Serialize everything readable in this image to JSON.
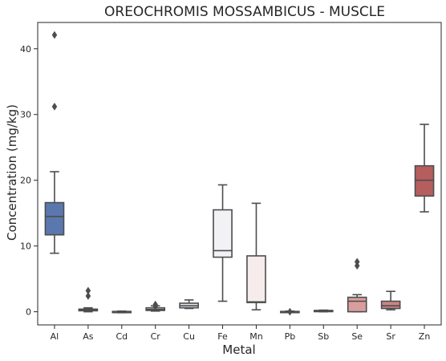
{
  "chart_data": {
    "type": "box",
    "title": "OREOCHROMIS MOSSAMBICUS - MUSCLE",
    "xlabel": "Metal",
    "ylabel": "Concentration (mg/kg)",
    "ylim": [
      -2,
      44
    ],
    "yticks": [
      0,
      10,
      20,
      30,
      40
    ],
    "grid": false,
    "categories": [
      "Al",
      "As",
      "Cd",
      "Cr",
      "Cu",
      "Fe",
      "Mn",
      "Pb",
      "Sb",
      "Se",
      "Sr",
      "Zn"
    ],
    "boxes": [
      {
        "category": "Al",
        "whisker_low": 8.9,
        "q1": 11.7,
        "median": 14.5,
        "q3": 16.6,
        "whisker_high": 21.3,
        "outliers": [
          31.2,
          42.1
        ],
        "color": "#5a78ad"
      },
      {
        "category": "As",
        "whisker_low": 0.0,
        "q1": 0.15,
        "median": 0.3,
        "q3": 0.4,
        "whisker_high": 0.6,
        "outliers": [
          2.4,
          3.2
        ],
        "color": "#8299c2"
      },
      {
        "category": "Cd",
        "whisker_low": -0.15,
        "q1": -0.05,
        "median": 0.0,
        "q3": 0.05,
        "whisker_high": 0.1,
        "outliers": [],
        "color": "#a6b5d4"
      },
      {
        "category": "Cr",
        "whisker_low": 0.1,
        "q1": 0.2,
        "median": 0.35,
        "q3": 0.6,
        "whisker_high": 0.9,
        "outliers": [
          0.8,
          1.1
        ],
        "color": "#c8d1e3"
      },
      {
        "category": "Cu",
        "whisker_low": 0.5,
        "q1": 0.6,
        "median": 0.9,
        "q3": 1.3,
        "whisker_high": 1.8,
        "outliers": [],
        "color": "#e3e7ef"
      },
      {
        "category": "Fe",
        "whisker_low": 1.6,
        "q1": 8.3,
        "median": 9.3,
        "q3": 15.5,
        "whisker_high": 19.3,
        "outliers": [],
        "color": "#f2f2f4"
      },
      {
        "category": "Mn",
        "whisker_low": 0.3,
        "q1": 1.4,
        "median": 1.5,
        "q3": 8.5,
        "whisker_high": 16.5,
        "outliers": [],
        "color": "#f6ecec"
      },
      {
        "category": "Pb",
        "whisker_low": -0.1,
        "q1": -0.05,
        "median": 0.0,
        "q3": 0.05,
        "whisker_high": 0.1,
        "outliers": [
          0.0
        ],
        "color": "#f0dcdc"
      },
      {
        "category": "Sb",
        "whisker_low": 0.0,
        "q1": 0.05,
        "median": 0.1,
        "q3": 0.2,
        "whisker_high": 0.25,
        "outliers": [],
        "color": "#e8caca"
      },
      {
        "category": "Se",
        "whisker_low": 0.0,
        "q1": 0.0,
        "median": 1.6,
        "q3": 2.2,
        "whisker_high": 2.6,
        "outliers": [
          7.0,
          7.6
        ],
        "color": "#d99d9d"
      },
      {
        "category": "Sr",
        "whisker_low": 0.3,
        "q1": 0.5,
        "median": 0.9,
        "q3": 1.6,
        "whisker_high": 3.1,
        "outliers": [],
        "color": "#cc8484"
      },
      {
        "category": "Zn",
        "whisker_low": 15.2,
        "q1": 17.6,
        "median": 20.0,
        "q3": 22.2,
        "whisker_high": 28.5,
        "outliers": [],
        "color": "#b65e5e"
      }
    ]
  }
}
